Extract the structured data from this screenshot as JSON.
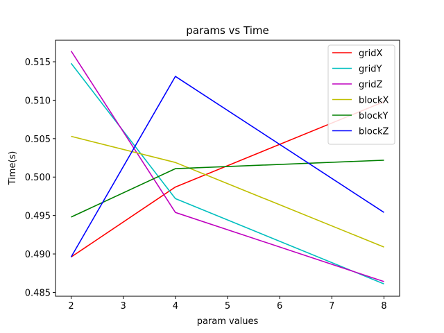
{
  "chart_data": {
    "type": "line",
    "title": "params vs Time",
    "xlabel": "param values",
    "ylabel": "Time(s)",
    "x": [
      2,
      4,
      8
    ],
    "xlim": [
      1.7,
      8.3
    ],
    "ylim": [
      0.4845,
      0.5178
    ],
    "xticks": [
      2,
      3,
      4,
      5,
      6,
      7,
      8
    ],
    "yticks": [
      0.485,
      0.49,
      0.495,
      0.5,
      0.505,
      0.51,
      0.515
    ],
    "ytick_labels": [
      "0.485",
      "0.490",
      "0.495",
      "0.500",
      "0.505",
      "0.510",
      "0.515"
    ],
    "grid": false,
    "legend_position": "top-right",
    "series": [
      {
        "name": "gridX",
        "color": "#ff0000",
        "values": [
          0.4896,
          0.4987,
          0.5098
        ]
      },
      {
        "name": "gridY",
        "color": "#00bfbf",
        "values": [
          0.5148,
          0.4972,
          0.4861
        ]
      },
      {
        "name": "gridZ",
        "color": "#bf00bf",
        "values": [
          0.5164,
          0.4954,
          0.4864
        ]
      },
      {
        "name": "blockX",
        "color": "#bfbf00",
        "values": [
          0.5053,
          0.5019,
          0.4909
        ]
      },
      {
        "name": "blockY",
        "color": "#008000",
        "values": [
          0.4948,
          0.5011,
          0.5022
        ]
      },
      {
        "name": "blockZ",
        "color": "#0000ff",
        "values": [
          0.4896,
          0.5131,
          0.4954
        ]
      }
    ]
  }
}
